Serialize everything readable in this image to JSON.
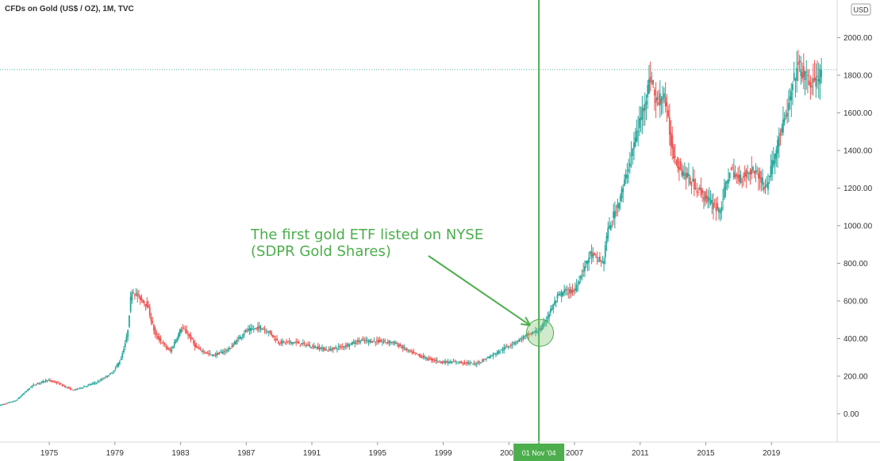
{
  "header": {
    "title": "CFDs on Gold (US$ / OZ), 1M, TVC"
  },
  "currency_badge": "USD",
  "annotation": {
    "line1": "The first gold ETF listed on NYSE",
    "line2": "(SDPR Gold Shares)"
  },
  "cursor": {
    "label": "01 Nov '04"
  },
  "colors": {
    "up": "#26a69a",
    "down": "#ef5350",
    "highlight": "#4cae4c",
    "grid": "#e8ecef",
    "axis_text": "#333333"
  },
  "chart_data": {
    "type": "line",
    "title": "CFDs on Gold (US$ / OZ), 1M, TVC",
    "xlabel": "",
    "ylabel": "",
    "ylim": [
      -150,
      2200
    ],
    "xlim": [
      1972,
      2023
    ],
    "grid": false,
    "y_ticks": [
      0,
      200,
      400,
      600,
      800,
      1000,
      1200,
      1400,
      1600,
      1800,
      2000
    ],
    "y_tick_labels": [
      "0.00",
      "200.00",
      "400.00",
      "600.00",
      "800.00",
      "1000.00",
      "1200.00",
      "1400.00",
      "1600.00",
      "1800.00",
      "2000.00"
    ],
    "x_ticks": [
      1975,
      1979,
      1983,
      1987,
      1991,
      1995,
      1999,
      2003,
      2007,
      2011,
      2015,
      2019
    ],
    "x_tick_labels": [
      "1975",
      "1979",
      "1983",
      "1987",
      "1991",
      "1995",
      "1999",
      "2003",
      "2007",
      "2011",
      "2015",
      "2019"
    ],
    "horizontal_reference": 1830,
    "vertical_marker": 2004.83,
    "highlight_circle": {
      "x": 2004.9,
      "y": 430
    },
    "series": [
      {
        "x": [
          1972,
          1973,
          1974,
          1974.9,
          1975.5,
          1976.5,
          1977,
          1978,
          1978.9,
          1979.4,
          1979.8,
          1980.05,
          1980.5,
          1981,
          1981.5,
          1982.4,
          1982.9,
          1983.1,
          1983.6,
          1984,
          1985,
          1985.5,
          1986,
          1987,
          1987.9,
          1988.5,
          1989,
          1990,
          1991,
          1992,
          1993,
          1994,
          1995,
          1996,
          1997,
          1998,
          1999,
          2000,
          2001,
          2002,
          2003,
          2004,
          2005,
          2006,
          2006.4,
          2007,
          2008,
          2008.8,
          2009,
          2010,
          2011,
          2011.7,
          2012,
          2012.5,
          2013,
          2013.5,
          2014,
          2015,
          2015.9,
          2016.5,
          2017,
          2018,
          2018.7,
          2019,
          2019.6,
          2020,
          2020.6,
          2021,
          2021.5,
          2022
        ],
        "y": [
          45,
          70,
          150,
          180,
          165,
          125,
          140,
          170,
          220,
          290,
          420,
          660,
          620,
          580,
          420,
          330,
          420,
          460,
          410,
          350,
          310,
          325,
          345,
          440,
          460,
          430,
          380,
          380,
          360,
          340,
          360,
          390,
          385,
          380,
          330,
          295,
          275,
          275,
          265,
          310,
          360,
          410,
          450,
          620,
          650,
          650,
          850,
          800,
          950,
          1200,
          1550,
          1800,
          1650,
          1700,
          1400,
          1300,
          1250,
          1150,
          1080,
          1300,
          1250,
          1300,
          1200,
          1300,
          1500,
          1600,
          1850,
          1800,
          1750,
          1800
        ]
      }
    ]
  }
}
